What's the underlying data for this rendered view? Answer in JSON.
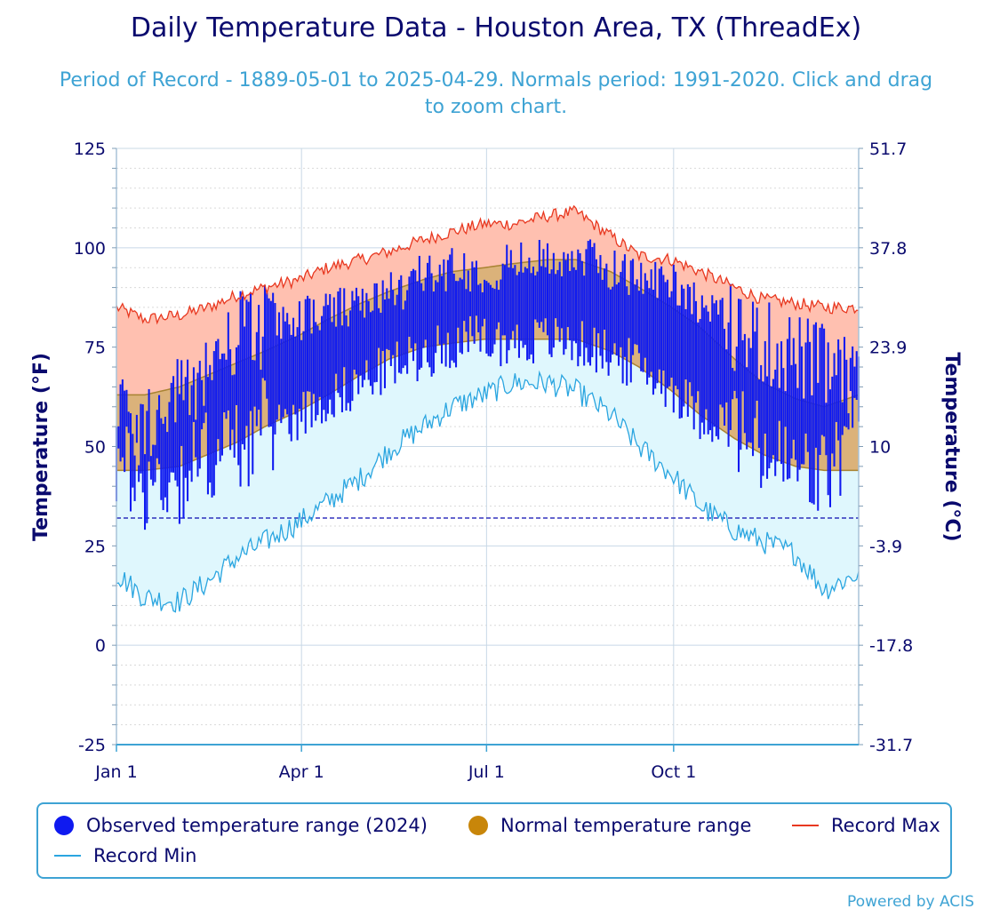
{
  "title": "Daily Temperature Data - Houston Area, TX (ThreadEx)",
  "subtitle": "Period of Record - 1889-05-01 to 2025-04-29. Normals period: 1991-2020. Click and drag to zoom chart.",
  "credits": "Powered by ACIS",
  "legend": {
    "observed": "Observed temperature range (2024)",
    "normal": "Normal temperature range",
    "record_max": "Record Max",
    "record_min": "Record Min"
  },
  "colors": {
    "observed": "#0f1af0",
    "normal_dot": "#c8860a",
    "normal_fill": "#dbb27a",
    "normal_edge": "#a88332",
    "record_max": "#e83820",
    "record_max_fill": "#ffc0b0",
    "record_min": "#2aa5e0",
    "record_min_fill": "#dff7fd",
    "freeze": "#0a0ab0",
    "axis_text": "#0a0a6e",
    "grid": "#c8d8e6"
  },
  "chart_data": {
    "type": "area",
    "title": "Daily Temperature Data - Houston Area, TX (ThreadEx)",
    "xlabel": "",
    "ylabel": "Temperature (°F)",
    "y2label": "Temperature (°C)",
    "ylim": [
      -25,
      125
    ],
    "yticks": [
      "125",
      "100",
      "75",
      "50",
      "25",
      "0",
      "-25"
    ],
    "yticks_right": [
      "51.7",
      "37.8",
      "23.9",
      "10",
      "-3.9",
      "-17.8",
      "-31.7"
    ],
    "xticks": [
      {
        "label": "Jan 1",
        "day": 1
      },
      {
        "label": "Apr 1",
        "day": 92
      },
      {
        "label": "Jul 1",
        "day": 183
      },
      {
        "label": "Oct 1",
        "day": 275
      }
    ],
    "days": 366,
    "freeze_line": 32,
    "anchor_days": [
      1,
      15,
      32,
      46,
      60,
      74,
      91,
      105,
      121,
      135,
      152,
      166,
      182,
      196,
      213,
      227,
      244,
      258,
      274,
      288,
      305,
      319,
      335,
      349,
      366
    ],
    "record_max": [
      85,
      82,
      83,
      85,
      88,
      90,
      92,
      95,
      97,
      99,
      102,
      104,
      106,
      106,
      108,
      109,
      103,
      98,
      97,
      94,
      90,
      87,
      86,
      85,
      85
    ],
    "normal_max": [
      63,
      63,
      65,
      68,
      71,
      74,
      78,
      82,
      86,
      89,
      92,
      94,
      95,
      96,
      97,
      97,
      94,
      90,
      85,
      80,
      72,
      66,
      62,
      60,
      63
    ],
    "normal_min": [
      44,
      44,
      45,
      48,
      51,
      55,
      59,
      63,
      68,
      72,
      75,
      76,
      77,
      77,
      77,
      77,
      74,
      70,
      64,
      58,
      52,
      48,
      45,
      44,
      44
    ],
    "record_min": [
      18,
      12,
      11,
      16,
      22,
      26,
      31,
      36,
      42,
      49,
      55,
      60,
      63,
      66,
      66,
      64,
      58,
      50,
      43,
      35,
      29,
      26,
      23,
      14,
      18
    ],
    "observed_max": [
      60,
      55,
      62,
      70,
      78,
      80,
      82,
      84,
      85,
      88,
      93,
      95,
      94,
      96,
      97,
      98,
      95,
      92,
      92,
      86,
      80,
      76,
      73,
      70,
      65
    ],
    "observed_min": [
      45,
      40,
      42,
      48,
      50,
      55,
      58,
      62,
      66,
      70,
      73,
      76,
      77,
      76,
      77,
      76,
      73,
      70,
      65,
      58,
      55,
      48,
      44,
      42,
      55
    ]
  }
}
